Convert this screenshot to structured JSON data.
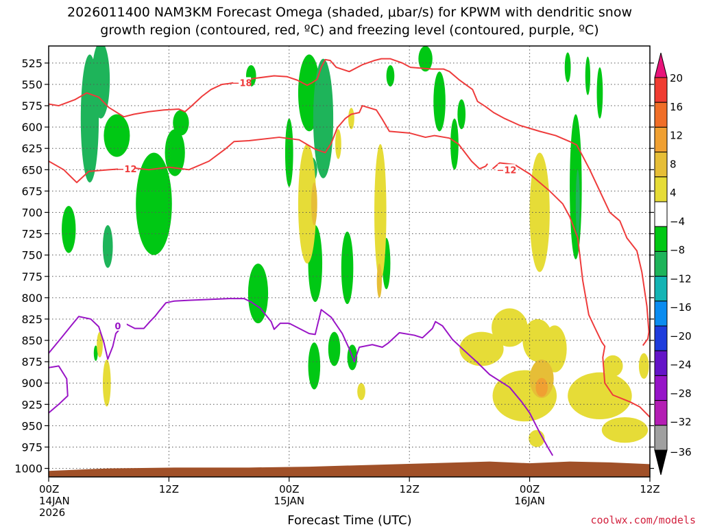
{
  "chart_data": {
    "type": "heatmap",
    "title_line1": "2026011400 NAM3KM Forecast Omega (shaded, μbar/s) for KPWM with dendritic snow",
    "title_line2": "growth region (contoured, red, ºC) and freezing level (contoured, purple, ºC)",
    "xlabel": "Forecast Time (UTC)",
    "credit": "coolwx.com/models",
    "x_unit": "hours after 2026-01-14 00Z",
    "xlim": [
      0,
      60
    ],
    "ylim": [
      1010,
      505
    ],
    "yticks": [
      525,
      550,
      575,
      600,
      625,
      650,
      675,
      700,
      725,
      750,
      775,
      800,
      825,
      850,
      875,
      900,
      925,
      950,
      975,
      1000
    ],
    "xticks": [
      {
        "x": 0,
        "label": "00Z",
        "sub1": "14JAN",
        "sub2": "2026"
      },
      {
        "x": 12,
        "label": "12Z",
        "sub1": "",
        "sub2": ""
      },
      {
        "x": 24,
        "label": "00Z",
        "sub1": "15JAN",
        "sub2": ""
      },
      {
        "x": 36,
        "label": "12Z",
        "sub1": "",
        "sub2": ""
      },
      {
        "x": 48,
        "label": "00Z",
        "sub1": "16JAN",
        "sub2": ""
      },
      {
        "x": 60,
        "label": "12Z",
        "sub1": "",
        "sub2": ""
      }
    ],
    "colorbar": {
      "ticks": [
        "20",
        "16",
        "12",
        "8",
        "4",
        "−4",
        "−8",
        "−12",
        "−16",
        "−20",
        "−24",
        "−28",
        "−32",
        "−36"
      ],
      "colors": [
        "#e8147a",
        "#f03c32",
        "#f06e28",
        "#f0a032",
        "#e6be37",
        "#e6dc37",
        "#ffffff",
        "#00c814",
        "#1eb45a",
        "#14b4b4",
        "#0a8cf0",
        "#1e3cdc",
        "#6414c8",
        "#9614c8",
        "#b41eb4",
        "#a0a0a0",
        "#000000"
      ]
    },
    "omega_levels": [
      {
        "min": -36,
        "color": "#9614c8"
      },
      {
        "min": -12,
        "color": "#14b4b4"
      },
      {
        "min": -8,
        "color": "#1eb45a"
      },
      {
        "min": -4,
        "color": "#00c814"
      },
      {
        "min": 4,
        "color": "#e6dc37"
      },
      {
        "min": 8,
        "color": "#e6be37"
      },
      {
        "min": 12,
        "color": "#f0a032"
      },
      {
        "min": 16,
        "color": "#f06e28"
      }
    ],
    "omega_regions": [
      {
        "t": 4.1,
        "p": 590,
        "dt": 0.9,
        "dp": 150,
        "v": -10
      },
      {
        "t": 5.2,
        "p": 545,
        "dt": 0.9,
        "dp": 90,
        "v": -8
      },
      {
        "t": 6.8,
        "p": 610,
        "dt": 1.3,
        "dp": 50,
        "v": -7
      },
      {
        "t": 2.0,
        "p": 720,
        "dt": 0.7,
        "dp": 55,
        "v": -7
      },
      {
        "t": 5.9,
        "p": 740,
        "dt": 0.5,
        "dp": 50,
        "v": -10
      },
      {
        "t": 4.7,
        "p": 865,
        "dt": 0.2,
        "dp": 18,
        "v": -6
      },
      {
        "t": 10.5,
        "p": 690,
        "dt": 1.8,
        "dp": 120,
        "v": -6
      },
      {
        "t": 12.6,
        "p": 630,
        "dt": 1.0,
        "dp": 55,
        "v": -6
      },
      {
        "t": 13.2,
        "p": 595,
        "dt": 0.8,
        "dp": 30,
        "v": -6
      },
      {
        "t": 20.9,
        "p": 795,
        "dt": 1.0,
        "dp": 70,
        "v": -7
      },
      {
        "t": 20.2,
        "p": 540,
        "dt": 0.5,
        "dp": 25,
        "v": -6
      },
      {
        "t": 24.0,
        "p": 630,
        "dt": 0.4,
        "dp": 80,
        "v": -6
      },
      {
        "t": 26.0,
        "p": 560,
        "dt": 1.1,
        "dp": 90,
        "v": -7
      },
      {
        "t": 27.4,
        "p": 590,
        "dt": 1.0,
        "dp": 140,
        "v": -9
      },
      {
        "t": 26.2,
        "p": 650,
        "dt": 0.6,
        "dp": 30,
        "v": -10
      },
      {
        "t": 26.6,
        "p": 760,
        "dt": 0.7,
        "dp": 90,
        "v": -6
      },
      {
        "t": 26.5,
        "p": 880,
        "dt": 0.6,
        "dp": 55,
        "v": -6
      },
      {
        "t": 29.8,
        "p": 765,
        "dt": 0.6,
        "dp": 85,
        "v": -6
      },
      {
        "t": 28.5,
        "p": 860,
        "dt": 0.6,
        "dp": 40,
        "v": -6
      },
      {
        "t": 30.3,
        "p": 870,
        "dt": 0.5,
        "dp": 30,
        "v": -6
      },
      {
        "t": 33.7,
        "p": 760,
        "dt": 0.4,
        "dp": 60,
        "v": -6
      },
      {
        "t": 34.1,
        "p": 540,
        "dt": 0.4,
        "dp": 25,
        "v": -6
      },
      {
        "t": 37.6,
        "p": 520,
        "dt": 0.7,
        "dp": 30,
        "v": -6
      },
      {
        "t": 39.0,
        "p": 570,
        "dt": 0.6,
        "dp": 70,
        "v": -6
      },
      {
        "t": 40.5,
        "p": 620,
        "dt": 0.4,
        "dp": 60,
        "v": -6
      },
      {
        "t": 41.2,
        "p": 585,
        "dt": 0.4,
        "dp": 35,
        "v": -6
      },
      {
        "t": 52.6,
        "p": 670,
        "dt": 0.6,
        "dp": 170,
        "v": -7
      },
      {
        "t": 52.8,
        "p": 690,
        "dt": 0.2,
        "dp": 80,
        "v": -10
      },
      {
        "t": 51.8,
        "p": 530,
        "dt": 0.3,
        "dp": 35,
        "v": -6
      },
      {
        "t": 53.8,
        "p": 540,
        "dt": 0.25,
        "dp": 45,
        "v": -6
      },
      {
        "t": 55.0,
        "p": 560,
        "dt": 0.3,
        "dp": 60,
        "v": -6
      },
      {
        "t": 5.8,
        "p": 900,
        "dt": 0.4,
        "dp": 55,
        "v": 5
      },
      {
        "t": 5.1,
        "p": 855,
        "dt": 0.3,
        "dp": 30,
        "v": 5
      },
      {
        "t": 25.8,
        "p": 690,
        "dt": 0.9,
        "dp": 140,
        "v": 6
      },
      {
        "t": 26.5,
        "p": 690,
        "dt": 0.3,
        "dp": 50,
        "v": 9
      },
      {
        "t": 30.2,
        "p": 590,
        "dt": 0.3,
        "dp": 25,
        "v": 5
      },
      {
        "t": 28.9,
        "p": 620,
        "dt": 0.3,
        "dp": 35,
        "v": 5
      },
      {
        "t": 33.1,
        "p": 700,
        "dt": 0.6,
        "dp": 160,
        "v": 6
      },
      {
        "t": 33.0,
        "p": 780,
        "dt": 0.25,
        "dp": 40,
        "v": 10
      },
      {
        "t": 31.2,
        "p": 910,
        "dt": 0.4,
        "dp": 20,
        "v": 5
      },
      {
        "t": 43.2,
        "p": 860,
        "dt": 2.2,
        "dp": 40,
        "v": 5
      },
      {
        "t": 46.0,
        "p": 835,
        "dt": 1.8,
        "dp": 45,
        "v": 5
      },
      {
        "t": 47.5,
        "p": 915,
        "dt": 3.2,
        "dp": 60,
        "v": 5
      },
      {
        "t": 49.0,
        "p": 700,
        "dt": 1.0,
        "dp": 140,
        "v": 5
      },
      {
        "t": 48.8,
        "p": 850,
        "dt": 1.5,
        "dp": 50,
        "v": 5
      },
      {
        "t": 50.5,
        "p": 860,
        "dt": 1.2,
        "dp": 55,
        "v": 5
      },
      {
        "t": 55.0,
        "p": 915,
        "dt": 3.2,
        "dp": 55,
        "v": 5
      },
      {
        "t": 56.3,
        "p": 880,
        "dt": 1.0,
        "dp": 25,
        "v": 5
      },
      {
        "t": 57.5,
        "p": 955,
        "dt": 2.3,
        "dp": 30,
        "v": 5
      },
      {
        "t": 59.4,
        "p": 880,
        "dt": 0.5,
        "dp": 30,
        "v": 5
      },
      {
        "t": 49.2,
        "p": 895,
        "dt": 1.2,
        "dp": 45,
        "v": 9
      },
      {
        "t": 49.2,
        "p": 905,
        "dt": 0.6,
        "dp": 22,
        "v": 13
      },
      {
        "t": 48.7,
        "p": 965,
        "dt": 0.8,
        "dp": 20,
        "v": 5
      }
    ],
    "red_contours": [
      {
        "label": "−12",
        "label_at": [
          7.8,
          649
        ],
        "points": [
          [
            0,
            640
          ],
          [
            1.5,
            650
          ],
          [
            2.8,
            665
          ],
          [
            4,
            652
          ],
          [
            6,
            650
          ],
          [
            8.5,
            648
          ],
          [
            10,
            650
          ],
          [
            12,
            647
          ],
          [
            14,
            650
          ],
          [
            16,
            640
          ],
          [
            17.6,
            626
          ],
          [
            18.5,
            617
          ],
          [
            20,
            616
          ],
          [
            23,
            612
          ],
          [
            25,
            615
          ],
          [
            26.6,
            626
          ],
          [
            27.6,
            630
          ],
          [
            28.2,
            619
          ],
          [
            28.8,
            601
          ],
          [
            29.6,
            590
          ],
          [
            30.2,
            585
          ],
          [
            31,
            583
          ],
          [
            31.3,
            575
          ],
          [
            32.7,
            580
          ],
          [
            33.3,
            591
          ],
          [
            34,
            605
          ],
          [
            36,
            607
          ],
          [
            37.6,
            612
          ],
          [
            38.5,
            610
          ],
          [
            40,
            613
          ],
          [
            40.9,
            620
          ],
          [
            42.2,
            640
          ],
          [
            43,
            649
          ],
          [
            43.6,
            646
          ],
          [
            43.8,
            643
          ]
        ]
      },
      {
        "label": "−12",
        "label_at": [
          45.7,
          650
        ],
        "points": [
          [
            44.3,
            649
          ],
          [
            45,
            642
          ],
          [
            46.5,
            644
          ],
          [
            48,
            655
          ],
          [
            50,
            675
          ],
          [
            51.3,
            690
          ],
          [
            52,
            705
          ],
          [
            52.8,
            730
          ],
          [
            53,
            750
          ],
          [
            53.3,
            780
          ],
          [
            53.9,
            820
          ],
          [
            54.5,
            835
          ],
          [
            55.2,
            852
          ],
          [
            55.5,
            857
          ],
          [
            55.3,
            870
          ],
          [
            55.5,
            900
          ],
          [
            56.3,
            914
          ],
          [
            58,
            922
          ],
          [
            59,
            928
          ],
          [
            60,
            940
          ]
        ]
      },
      {
        "label": "−18",
        "label_at": [
          19.3,
          548
        ],
        "points": [
          [
            0,
            573
          ],
          [
            1,
            575
          ],
          [
            2.6,
            568
          ],
          [
            3.8,
            560
          ],
          [
            5,
            565
          ],
          [
            6,
            577
          ],
          [
            7.5,
            588
          ],
          [
            8.5,
            585
          ],
          [
            10,
            582
          ],
          [
            11.5,
            580
          ],
          [
            13,
            579
          ],
          [
            13.6,
            582
          ],
          [
            14.2,
            576
          ],
          [
            15.3,
            564
          ],
          [
            16.2,
            556
          ],
          [
            17.3,
            550
          ],
          [
            18,
            549
          ],
          [
            19,
            547
          ],
          [
            20.5,
            543
          ],
          [
            22.5,
            540
          ],
          [
            23.8,
            541
          ],
          [
            24.8,
            545
          ],
          [
            25.8,
            551
          ],
          [
            26.3,
            548
          ],
          [
            26.8,
            544
          ],
          [
            27.2,
            530
          ],
          [
            27.6,
            521
          ],
          [
            28.1,
            522
          ],
          [
            28.7,
            530
          ],
          [
            30,
            535
          ],
          [
            31.3,
            527
          ],
          [
            32.5,
            522
          ],
          [
            33.2,
            520
          ],
          [
            34.1,
            520
          ],
          [
            35.3,
            525
          ],
          [
            36.1,
            530
          ],
          [
            38.3,
            532
          ],
          [
            39.4,
            532
          ],
          [
            40,
            535
          ],
          [
            41,
            545
          ],
          [
            42.3,
            556
          ],
          [
            42.8,
            570
          ],
          [
            43.6,
            576
          ],
          [
            44.4,
            583
          ],
          [
            45.5,
            590
          ],
          [
            47,
            598
          ],
          [
            49,
            605
          ],
          [
            50.6,
            610
          ],
          [
            52,
            617
          ],
          [
            52.7,
            621
          ],
          [
            53.2,
            632
          ],
          [
            54,
            650
          ],
          [
            55,
            675
          ],
          [
            56,
            700
          ],
          [
            57,
            710
          ],
          [
            57.7,
            730
          ],
          [
            58.7,
            745
          ],
          [
            59.2,
            770
          ],
          [
            59.7,
            810
          ],
          [
            59.9,
            840
          ],
          [
            59.8,
            848
          ],
          [
            59.3,
            856
          ]
        ]
      }
    ],
    "purple_contours": [
      {
        "label": "0",
        "label_at": [
          6.9,
          833
        ],
        "points": [
          [
            0,
            865
          ],
          [
            1.2,
            848
          ],
          [
            2.3,
            832
          ],
          [
            3,
            822
          ],
          [
            4.2,
            825
          ],
          [
            5,
            834
          ],
          [
            5.5,
            852
          ],
          [
            5.9,
            872
          ],
          [
            6.4,
            857
          ],
          [
            6.7,
            842
          ],
          [
            7.6,
            830
          ],
          [
            8.6,
            836
          ],
          [
            9.5,
            836
          ],
          [
            10.1,
            828
          ],
          [
            10.6,
            822
          ],
          [
            11,
            816
          ],
          [
            11.7,
            806
          ],
          [
            12.5,
            804
          ],
          [
            14,
            803
          ],
          [
            16,
            802
          ],
          [
            18,
            801
          ],
          [
            19.5,
            801
          ],
          [
            20.2,
            805
          ],
          [
            21.1,
            812
          ],
          [
            22.2,
            828
          ],
          [
            22.5,
            837
          ],
          [
            23.1,
            830
          ],
          [
            24,
            830
          ],
          [
            26,
            842
          ],
          [
            26.6,
            843
          ],
          [
            27.2,
            814
          ],
          [
            28.2,
            823
          ],
          [
            29.3,
            842
          ],
          [
            30,
            860
          ],
          [
            30.5,
            875
          ],
          [
            31,
            858
          ],
          [
            32.3,
            855
          ],
          [
            33.3,
            858
          ],
          [
            33.9,
            853
          ],
          [
            35,
            841
          ],
          [
            36.5,
            844
          ],
          [
            37.3,
            847
          ],
          [
            38.3,
            836
          ],
          [
            38.6,
            828
          ],
          [
            39.3,
            833
          ],
          [
            40.3,
            849
          ],
          [
            41.3,
            860
          ],
          [
            42.7,
            875
          ],
          [
            44,
            890
          ],
          [
            46,
            905
          ],
          [
            47.2,
            922
          ],
          [
            48,
            935
          ],
          [
            49,
            958
          ],
          [
            49.8,
            975
          ],
          [
            50.3,
            985
          ]
        ]
      },
      {
        "label": "",
        "label_at": null,
        "points": [
          [
            0,
            882
          ],
          [
            1,
            880
          ],
          [
            1.8,
            895
          ],
          [
            1.9,
            915
          ],
          [
            1,
            925
          ],
          [
            0,
            935
          ]
        ]
      }
    ],
    "terrain_top": [
      [
        0,
        1003
      ],
      [
        6,
        1000
      ],
      [
        13,
        999
      ],
      [
        20,
        999
      ],
      [
        26,
        998
      ],
      [
        32,
        996
      ],
      [
        38,
        994
      ],
      [
        44,
        992
      ],
      [
        48,
        994
      ],
      [
        52,
        992
      ],
      [
        56,
        993
      ],
      [
        60,
        995
      ]
    ],
    "terrain_color": "#a05028",
    "red_contour_color": "#ee3b3b",
    "purple_contour_color": "#9914c6"
  }
}
